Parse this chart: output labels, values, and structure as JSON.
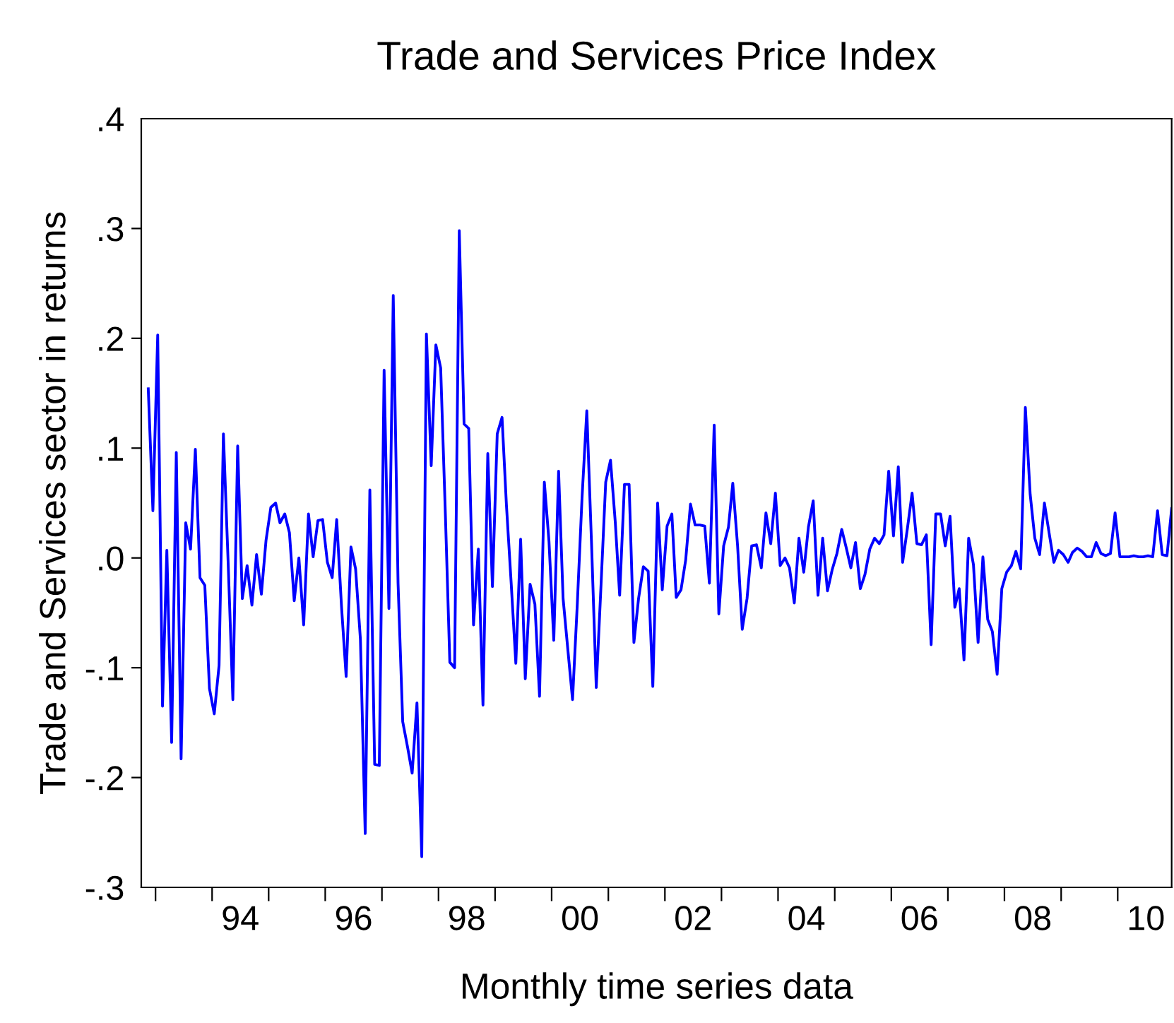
{
  "chart_data": {
    "type": "line",
    "title": "Trade and Services Price Index",
    "xlabel": "Monthly time series data",
    "ylabel": "Trade and Services sector in returns",
    "x": [
      "1992-11",
      "1992-12",
      "1993-01",
      "1993-02",
      "1993-03",
      "1993-04",
      "1993-05",
      "1993-06",
      "1993-07",
      "1993-08",
      "1993-09",
      "1993-10",
      "1993-11",
      "1993-12",
      "1994-01",
      "1994-02",
      "1994-03",
      "1994-04",
      "1994-05",
      "1994-06",
      "1994-07",
      "1994-08",
      "1994-09",
      "1994-10",
      "1994-11",
      "1994-12",
      "1995-01",
      "1995-02",
      "1995-03",
      "1995-04",
      "1995-05",
      "1995-06",
      "1995-07",
      "1995-08",
      "1995-09",
      "1995-10",
      "1995-11",
      "1995-12",
      "1996-01",
      "1996-02",
      "1996-03",
      "1996-04",
      "1996-05",
      "1996-06",
      "1996-07",
      "1996-08",
      "1996-09",
      "1996-10",
      "1996-11",
      "1996-12",
      "1997-01",
      "1997-02",
      "1997-03",
      "1997-04",
      "1997-05",
      "1997-06",
      "1997-07",
      "1997-08",
      "1997-09",
      "1997-10",
      "1997-11",
      "1997-12",
      "1998-01",
      "1998-02",
      "1998-03",
      "1998-04",
      "1998-05",
      "1998-06",
      "1998-07",
      "1998-08",
      "1998-09",
      "1998-10",
      "1998-11",
      "1998-12",
      "1999-01",
      "1999-02",
      "1999-03",
      "1999-04",
      "1999-05",
      "1999-06",
      "1999-07",
      "1999-08",
      "1999-09",
      "1999-10",
      "1999-11",
      "1999-12",
      "2000-01",
      "2000-02",
      "2000-03",
      "2000-04",
      "2000-05",
      "2000-06",
      "2000-07",
      "2000-08",
      "2000-09",
      "2000-10",
      "2000-11",
      "2000-12",
      "2001-01",
      "2001-02",
      "2001-03",
      "2001-04",
      "2001-05",
      "2001-06",
      "2001-07",
      "2001-08",
      "2001-09",
      "2001-10",
      "2001-11",
      "2001-12",
      "2002-01",
      "2002-02",
      "2002-03",
      "2002-04",
      "2002-05",
      "2002-06",
      "2002-07",
      "2002-08",
      "2002-09",
      "2002-10",
      "2002-11",
      "2002-12",
      "2003-01",
      "2003-02",
      "2003-03",
      "2003-04",
      "2003-05",
      "2003-06",
      "2003-07",
      "2003-08",
      "2003-09",
      "2003-10",
      "2003-11",
      "2003-12",
      "2004-01",
      "2004-02",
      "2004-03",
      "2004-04",
      "2004-05",
      "2004-06",
      "2004-07",
      "2004-08",
      "2004-09",
      "2004-10",
      "2004-11",
      "2004-12",
      "2005-01",
      "2005-02",
      "2005-03",
      "2005-04",
      "2005-05",
      "2005-06",
      "2005-07",
      "2005-08",
      "2005-09",
      "2005-10",
      "2005-11",
      "2005-12",
      "2006-01",
      "2006-02",
      "2006-03",
      "2006-04",
      "2006-05",
      "2006-06",
      "2006-07",
      "2006-08",
      "2006-09",
      "2006-10",
      "2006-11",
      "2006-12",
      "2007-01",
      "2007-02",
      "2007-03",
      "2007-04",
      "2007-05",
      "2007-06",
      "2007-07",
      "2007-08",
      "2007-09",
      "2007-10",
      "2007-11",
      "2007-12",
      "2008-01",
      "2008-02",
      "2008-03",
      "2008-04",
      "2008-05",
      "2008-06",
      "2008-07",
      "2008-08",
      "2008-09",
      "2008-10",
      "2008-11",
      "2008-12",
      "2009-01",
      "2009-02",
      "2009-03",
      "2009-04",
      "2009-05",
      "2009-06",
      "2009-07",
      "2009-08",
      "2009-09",
      "2009-10",
      "2009-11",
      "2009-12",
      "2010-01",
      "2010-02",
      "2010-03",
      "2010-04",
      "2010-05",
      "2010-06",
      "2010-07",
      "2010-08",
      "2010-09",
      "2010-10",
      "2010-11",
      "2010-12"
    ],
    "series": [
      {
        "color": "#0000ff",
        "values": [
          0.154,
          0.043,
          0.203,
          -0.135,
          0.007,
          -0.168,
          0.096,
          -0.183,
          0.032,
          0.008,
          0.099,
          -0.018,
          -0.025,
          -0.119,
          -0.142,
          -0.098,
          0.113,
          -0.006,
          -0.129,
          0.102,
          -0.037,
          -0.007,
          -0.043,
          0.003,
          -0.033,
          0.016,
          0.046,
          0.05,
          0.032,
          0.04,
          0.023,
          -0.039,
          0.0,
          -0.061,
          0.04,
          0.001,
          0.034,
          0.035,
          -0.004,
          -0.018,
          0.035,
          -0.044,
          -0.108,
          0.01,
          -0.01,
          -0.074,
          -0.251,
          0.062,
          -0.188,
          -0.189,
          0.171,
          -0.046,
          0.239,
          -0.023,
          -0.149,
          -0.172,
          -0.196,
          -0.132,
          -0.272,
          0.204,
          0.084,
          0.194,
          0.173,
          0.037,
          -0.095,
          -0.1,
          0.298,
          0.122,
          0.118,
          -0.061,
          0.008,
          -0.134,
          0.095,
          -0.026,
          0.113,
          0.128,
          0.049,
          -0.023,
          -0.096,
          0.017,
          -0.11,
          -0.024,
          -0.042,
          -0.126,
          0.069,
          0.015,
          -0.075,
          0.079,
          -0.037,
          -0.084,
          -0.129,
          -0.041,
          0.054,
          0.134,
          0.011,
          -0.118,
          -0.024,
          0.069,
          0.089,
          0.032,
          -0.034,
          0.067,
          0.067,
          -0.077,
          -0.037,
          -0.008,
          -0.012,
          -0.117,
          0.05,
          -0.029,
          0.029,
          0.04,
          -0.036,
          -0.029,
          -0.002,
          0.049,
          0.03,
          0.03,
          0.029,
          -0.023,
          0.121,
          -0.051,
          0.011,
          0.028,
          0.068,
          0.011,
          -0.065,
          -0.037,
          0.011,
          0.012,
          -0.009,
          0.041,
          0.013,
          0.059,
          -0.007,
          0.0,
          -0.009,
          -0.041,
          0.018,
          -0.013,
          0.028,
          0.052,
          -0.034,
          0.018,
          -0.03,
          -0.011,
          0.004,
          0.026,
          0.01,
          -0.009,
          0.014,
          -0.028,
          -0.015,
          0.008,
          0.018,
          0.013,
          0.021,
          0.079,
          0.02,
          0.083,
          -0.004,
          0.027,
          0.059,
          0.013,
          0.012,
          0.021,
          -0.079,
          0.04,
          0.04,
          0.011,
          0.038,
          -0.045,
          -0.028,
          -0.093,
          0.018,
          -0.006,
          -0.077,
          0.001,
          -0.056,
          -0.067,
          -0.106,
          -0.028,
          -0.013,
          -0.007,
          0.006,
          -0.01,
          0.137,
          0.058,
          0.018,
          0.003,
          0.05,
          0.023,
          -0.004,
          0.007,
          0.003,
          -0.004,
          0.005,
          0.009,
          0.006,
          0.001,
          0.001,
          0.014,
          0.004,
          0.002,
          0.004,
          0.041,
          0.001,
          0.001,
          0.001,
          0.002,
          0.001,
          0.001,
          0.002,
          0.001,
          0.043,
          0.003,
          0.002,
          0.045
        ]
      }
    ],
    "xlim": [
      "1992-10-01",
      "2010-12-15"
    ],
    "xticks": [
      {
        "value": "1993-01-01",
        "label": null
      },
      {
        "value": "1994-01-01",
        "label": null
      },
      {
        "value": "1994-07-02",
        "label": "94"
      },
      {
        "value": "1995-01-01",
        "label": null
      },
      {
        "value": "1996-01-01",
        "label": null
      },
      {
        "value": "1996-07-02",
        "label": "96"
      },
      {
        "value": "1997-01-01",
        "label": null
      },
      {
        "value": "1998-01-01",
        "label": null
      },
      {
        "value": "1998-07-02",
        "label": "98"
      },
      {
        "value": "1999-01-01",
        "label": null
      },
      {
        "value": "2000-01-01",
        "label": null
      },
      {
        "value": "2000-07-02",
        "label": "00"
      },
      {
        "value": "2001-01-01",
        "label": null
      },
      {
        "value": "2002-01-01",
        "label": null
      },
      {
        "value": "2002-07-02",
        "label": "02"
      },
      {
        "value": "2003-01-01",
        "label": null
      },
      {
        "value": "2004-01-01",
        "label": null
      },
      {
        "value": "2004-07-02",
        "label": "04"
      },
      {
        "value": "2005-01-01",
        "label": null
      },
      {
        "value": "2006-01-01",
        "label": null
      },
      {
        "value": "2006-07-02",
        "label": "06"
      },
      {
        "value": "2007-01-01",
        "label": null
      },
      {
        "value": "2008-01-01",
        "label": null
      },
      {
        "value": "2008-07-02",
        "label": "08"
      },
      {
        "value": "2009-01-01",
        "label": null
      },
      {
        "value": "2010-01-01",
        "label": null
      },
      {
        "value": "2010-07-02",
        "label": "10"
      }
    ],
    "ylim": [
      -0.3,
      0.4
    ],
    "yticks": [
      {
        "value": -0.3,
        "label": "-.3"
      },
      {
        "value": -0.2,
        "label": "-.2"
      },
      {
        "value": -0.1,
        "label": "-.1"
      },
      {
        "value": 0.0,
        "label": ".0"
      },
      {
        "value": 0.1,
        "label": ".1"
      },
      {
        "value": 0.2,
        "label": ".2"
      },
      {
        "value": 0.3,
        "label": ".3"
      },
      {
        "value": 0.4,
        "label": ".4"
      }
    ],
    "grid": false,
    "legend": false,
    "marker": "none",
    "line_style": "solid"
  }
}
